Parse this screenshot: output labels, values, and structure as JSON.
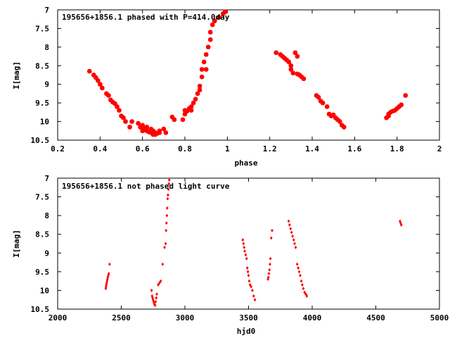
{
  "colors": {
    "points": "#ff0000",
    "axes": "#000000",
    "background": "#ffffff"
  },
  "chart_data": [
    {
      "type": "scatter",
      "title": "195656+1856.1 phased with P=414.0day",
      "xlabel": "phase",
      "ylabel": "I[mag]",
      "xlim": [
        0.2,
        2.0
      ],
      "ylim": [
        10.5,
        7.0
      ],
      "y_inverted": true,
      "xticks": [
        0.2,
        0.4,
        0.6,
        0.8,
        1.0,
        1.2,
        1.4,
        1.6,
        1.8,
        2.0
      ],
      "xtick_labels": [
        "0.2",
        "0.4",
        "0.6",
        "0.8",
        "1",
        "1.2",
        "1.4",
        "1.6",
        "1.8",
        "2"
      ],
      "yticks": [
        7.0,
        7.5,
        8.0,
        8.5,
        9.0,
        9.5,
        10.0,
        10.5
      ],
      "ytick_labels": [
        "7",
        "7.5",
        "8",
        "8.5",
        "9",
        "9.5",
        "10",
        "10.5"
      ],
      "grid": false,
      "legend": "none",
      "series": [
        {
          "marker": "filled-cross",
          "x": [
            0.35,
            0.37,
            0.38,
            0.39,
            0.4,
            0.41,
            0.43,
            0.44,
            0.45,
            0.46,
            0.47,
            0.48,
            0.49,
            0.5,
            0.51,
            0.52,
            0.54,
            0.55,
            0.58,
            0.59,
            0.6,
            0.6,
            0.61,
            0.62,
            0.62,
            0.63,
            0.64,
            0.64,
            0.65,
            0.65,
            0.66,
            0.66,
            0.67,
            0.68,
            0.68,
            0.7,
            0.71,
            0.74,
            0.75,
            0.79,
            0.8,
            0.8,
            0.81,
            0.82,
            0.83,
            0.83,
            0.84,
            0.85,
            0.86,
            0.87,
            0.87,
            0.88,
            0.88,
            0.89,
            0.9,
            0.9,
            0.91,
            0.92,
            0.92,
            0.93,
            0.94,
            0.96,
            0.98,
            0.99,
            1.23,
            1.25,
            1.26,
            1.27,
            1.28,
            1.29,
            1.3,
            1.3,
            1.31,
            1.32,
            1.33,
            1.33,
            1.34,
            1.35,
            1.36,
            1.42,
            1.43,
            1.44,
            1.45,
            1.47,
            1.48,
            1.49,
            1.5,
            1.51,
            1.52,
            1.53,
            1.54,
            1.55,
            1.75,
            1.76,
            1.76,
            1.77,
            1.78,
            1.79,
            1.8,
            1.81,
            1.82,
            1.84
          ],
          "y": [
            8.65,
            8.75,
            8.82,
            8.9,
            9.0,
            9.1,
            9.25,
            9.3,
            9.42,
            9.48,
            9.52,
            9.6,
            9.7,
            9.85,
            9.9,
            10.0,
            10.15,
            10.0,
            10.05,
            10.15,
            10.25,
            10.1,
            10.2,
            10.25,
            10.15,
            10.28,
            10.3,
            10.2,
            10.35,
            10.25,
            10.3,
            10.35,
            10.32,
            10.3,
            10.25,
            10.2,
            10.3,
            9.88,
            9.95,
            9.95,
            9.7,
            9.8,
            9.72,
            9.65,
            9.6,
            9.7,
            9.5,
            9.4,
            9.25,
            9.15,
            9.05,
            8.8,
            8.6,
            8.4,
            8.6,
            8.2,
            8.0,
            7.8,
            7.6,
            7.4,
            7.3,
            7.2,
            7.1,
            7.05,
            8.15,
            8.2,
            8.25,
            8.3,
            8.35,
            8.4,
            8.6,
            8.5,
            8.7,
            8.15,
            8.72,
            8.25,
            8.75,
            8.8,
            8.85,
            9.3,
            9.35,
            9.45,
            9.5,
            9.6,
            9.8,
            9.85,
            9.82,
            9.9,
            9.95,
            10.0,
            10.1,
            10.15,
            9.9,
            9.8,
            9.85,
            9.75,
            9.72,
            9.7,
            9.65,
            9.6,
            9.55,
            9.3
          ]
        }
      ]
    },
    {
      "type": "scatter",
      "title": "195656+1856.1 not phased light curve",
      "xlabel": "hjd0",
      "ylabel": "I[mag]",
      "xlim": [
        2000,
        5000
      ],
      "ylim": [
        10.5,
        7.0
      ],
      "y_inverted": true,
      "xticks": [
        2000,
        2500,
        3000,
        3500,
        4000,
        4500,
        5000
      ],
      "xtick_labels": [
        "2000",
        "2500",
        "3000",
        "3500",
        "4000",
        "4500",
        "5000"
      ],
      "yticks": [
        7.0,
        7.5,
        8.0,
        8.5,
        9.0,
        9.5,
        10.0,
        10.5
      ],
      "ytick_labels": [
        "7",
        "7.5",
        "8",
        "8.5",
        "9",
        "9.5",
        "10",
        "10.5"
      ],
      "grid": false,
      "legend": "none",
      "series": [
        {
          "marker": "small-filled-diamond",
          "x": [
            2378,
            2380,
            2383,
            2385,
            2388,
            2391,
            2394,
            2398,
            2402,
            2408,
            2738,
            2742,
            2746,
            2750,
            2754,
            2758,
            2762,
            2766,
            2770,
            2775,
            2779,
            2790,
            2800,
            2810,
            2825,
            2840,
            2848,
            2852,
            2855,
            2858,
            2861,
            2864,
            2867,
            2870,
            2874,
            2877,
            3455,
            3460,
            3465,
            3470,
            3478,
            3485,
            3490,
            3495,
            3500,
            3505,
            3512,
            3520,
            3530,
            3540,
            3550,
            3652,
            3656,
            3660,
            3664,
            3668,
            3672,
            3678,
            3685,
            3815,
            3822,
            3830,
            3838,
            3846,
            3855,
            3862,
            3870,
            3882,
            3890,
            3898,
            3906,
            3914,
            3922,
            3930,
            3940,
            3950,
            3958,
            4690,
            4695,
            4700
          ],
          "y": [
            9.95,
            9.9,
            9.85,
            9.8,
            9.75,
            9.7,
            9.65,
            9.6,
            9.55,
            9.3,
            10.0,
            10.15,
            10.2,
            10.25,
            10.3,
            10.35,
            10.38,
            10.4,
            10.3,
            10.2,
            10.1,
            9.85,
            9.8,
            9.75,
            9.3,
            8.85,
            8.75,
            8.4,
            8.2,
            8.0,
            7.8,
            7.55,
            7.45,
            7.3,
            7.15,
            7.05,
            8.65,
            8.75,
            8.85,
            8.95,
            9.05,
            9.15,
            9.4,
            9.5,
            9.6,
            9.75,
            9.85,
            9.9,
            10.0,
            10.15,
            10.25,
            9.7,
            9.65,
            9.55,
            9.45,
            9.3,
            9.15,
            8.6,
            8.4,
            8.15,
            8.25,
            8.35,
            8.45,
            8.55,
            8.65,
            8.75,
            8.85,
            9.3,
            9.4,
            9.5,
            9.6,
            9.75,
            9.85,
            9.95,
            10.05,
            10.1,
            10.15,
            8.15,
            8.2,
            8.25
          ]
        }
      ]
    }
  ]
}
